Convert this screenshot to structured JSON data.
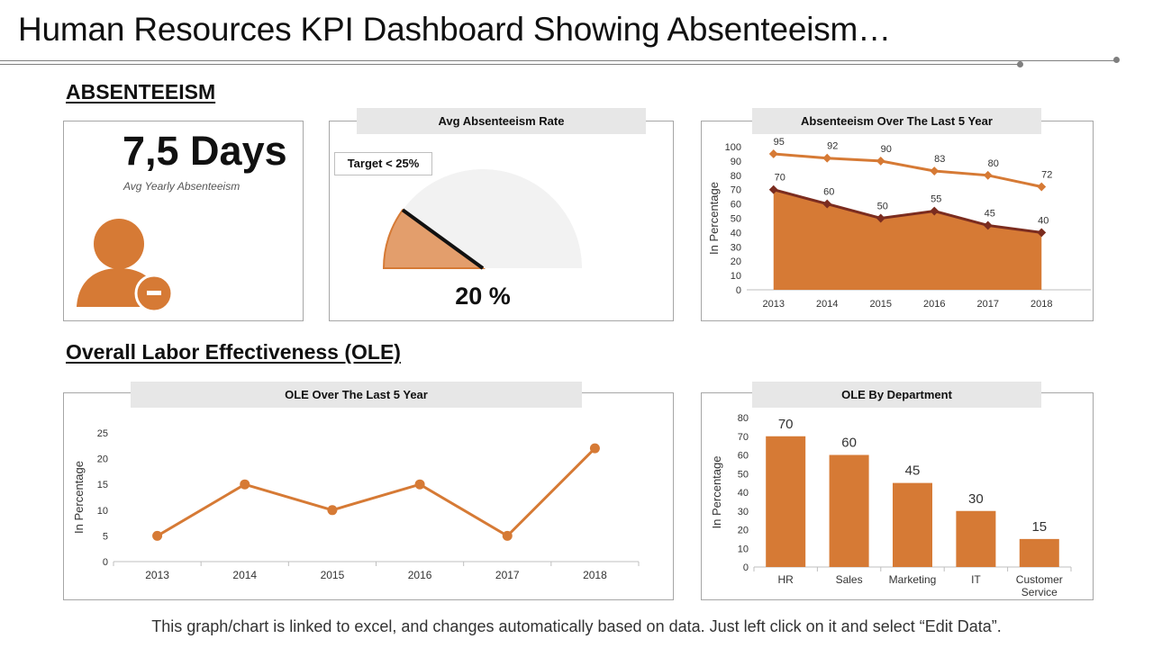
{
  "page": {
    "title": "Human Resources KPI Dashboard Showing Absenteeism…",
    "footer": "This graph/chart is linked to excel, and changes automatically based on data. Just left click on it and select “Edit Data”."
  },
  "colors": {
    "accent": "#d67a35",
    "accent_dark": "#7b2c1f",
    "panel_border": "#a6a6a6",
    "title_bar": "#e7e7e7"
  },
  "absenteeism": {
    "heading": "ABSENTEEISM",
    "days_value": "7,5 Days",
    "days_caption": "Avg  Yearly Absenteeism",
    "person_icon": "person-minus-icon",
    "gauge": {
      "title": "Avg Absenteeism Rate",
      "target_label": "Target < 25%",
      "value_label": "20 %",
      "value": 20,
      "target": 25,
      "max": 100
    }
  },
  "ole": {
    "heading": "Overall Labor Effectiveness (OLE)"
  },
  "chart_data": [
    {
      "type": "area",
      "title": "Absenteeism Over The Last 5 Year",
      "ylabel": "In Percentage",
      "categories": [
        "2013",
        "2014",
        "2015",
        "2016",
        "2017",
        "2018"
      ],
      "series": [
        {
          "values": [
            95,
            92,
            90,
            83,
            80,
            72
          ],
          "render": "line"
        },
        {
          "values": [
            70,
            60,
            50,
            55,
            45,
            40
          ],
          "render": "area"
        }
      ],
      "ylim": [
        0,
        100
      ],
      "yticks": [
        0,
        10,
        20,
        30,
        40,
        50,
        60,
        70,
        80,
        90,
        100
      ]
    },
    {
      "type": "line",
      "title": "OLE Over The Last 5 Year",
      "ylabel": "In Percentage",
      "categories": [
        "2013",
        "2014",
        "2015",
        "2016",
        "2017",
        "2018"
      ],
      "values": [
        5,
        15,
        10,
        15,
        5,
        22
      ],
      "ylim": [
        0,
        25
      ],
      "yticks": [
        0,
        5,
        10,
        15,
        20,
        25
      ]
    },
    {
      "type": "bar",
      "title": "OLE By Department",
      "ylabel": "In Percentage",
      "categories": [
        "HR",
        "Sales",
        "Marketing",
        "IT",
        "Customer Service"
      ],
      "values": [
        70,
        60,
        45,
        30,
        15
      ],
      "ylim": [
        0,
        80
      ],
      "yticks": [
        0,
        10,
        20,
        30,
        40,
        50,
        60,
        70,
        80
      ]
    }
  ]
}
